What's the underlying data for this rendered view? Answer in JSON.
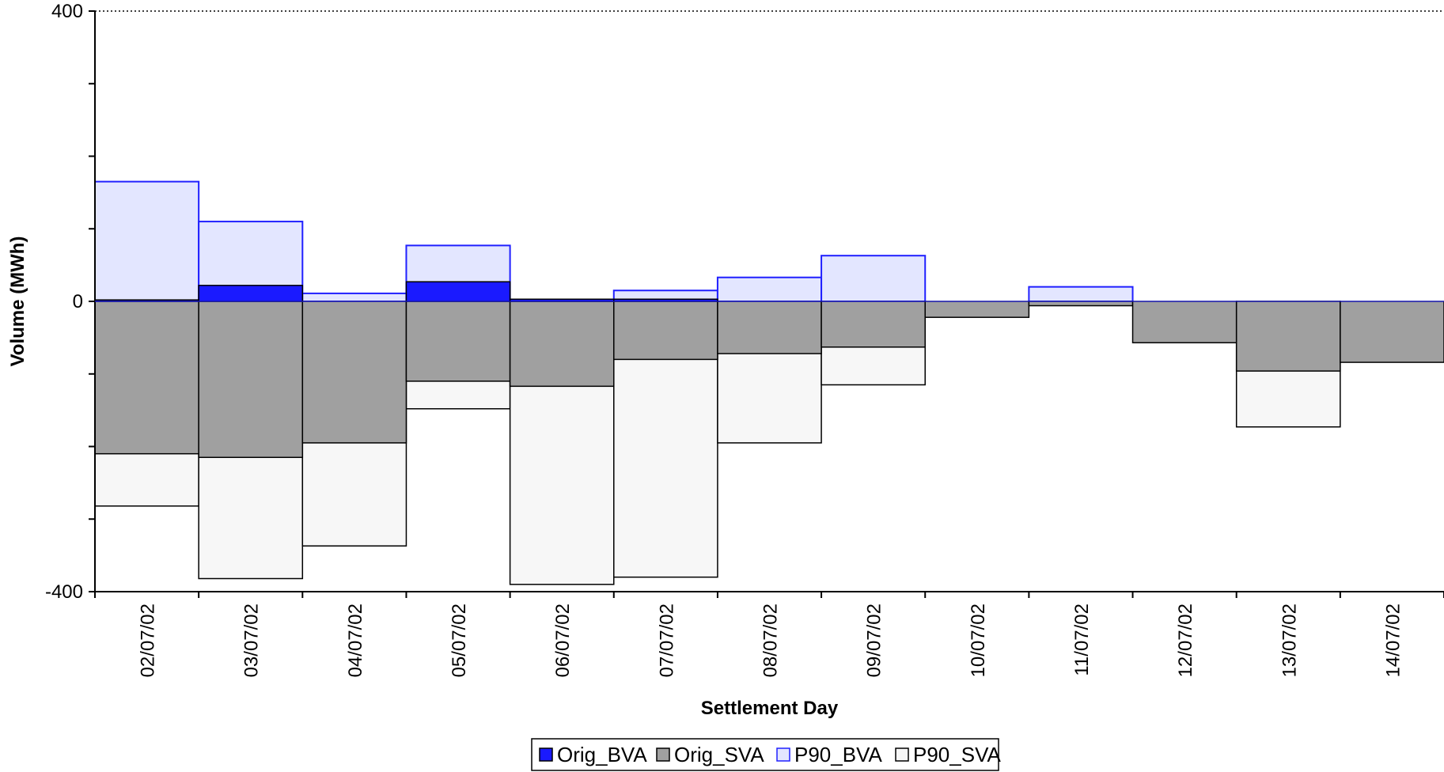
{
  "chart_data": {
    "type": "bar",
    "title": "",
    "xlabel": "Settlement Day",
    "ylabel": "Volume (MWh)",
    "ylim": [
      -400,
      400
    ],
    "yticks": [
      400,
      0,
      -400
    ],
    "grid": "top dotted line only",
    "legend_position": "bottom",
    "categories": [
      "02/07/02",
      "03/07/02",
      "04/07/02",
      "05/07/02",
      "06/07/02",
      "07/07/02",
      "08/07/02",
      "09/07/02",
      "10/07/02",
      "11/07/02",
      "12/07/02",
      "13/07/02",
      "14/07/02"
    ],
    "series": [
      {
        "name": "Orig_BVA",
        "color": "#1a1aff",
        "values": [
          2,
          22,
          0,
          27,
          3,
          3,
          0,
          0,
          0,
          0,
          0,
          0,
          0
        ]
      },
      {
        "name": "Orig_SVA",
        "color": "#a0a0a0",
        "values": [
          -210,
          -215,
          -195,
          -110,
          -117,
          -80,
          -72,
          -63,
          -22,
          -6,
          -57,
          -96,
          -84
        ]
      },
      {
        "name": "P90_BVA",
        "color": "#e3e6ff",
        "stroke": "#2020ff",
        "values": [
          165,
          110,
          11,
          77,
          0,
          15,
          33,
          63,
          0,
          20,
          0,
          0,
          0
        ]
      },
      {
        "name": "P90_SVA",
        "color": "#f7f7f7",
        "stroke": "#000000",
        "values": [
          -282,
          -382,
          -337,
          -148,
          -390,
          -380,
          -195,
          -115,
          0,
          0,
          0,
          -173,
          0
        ]
      }
    ]
  }
}
